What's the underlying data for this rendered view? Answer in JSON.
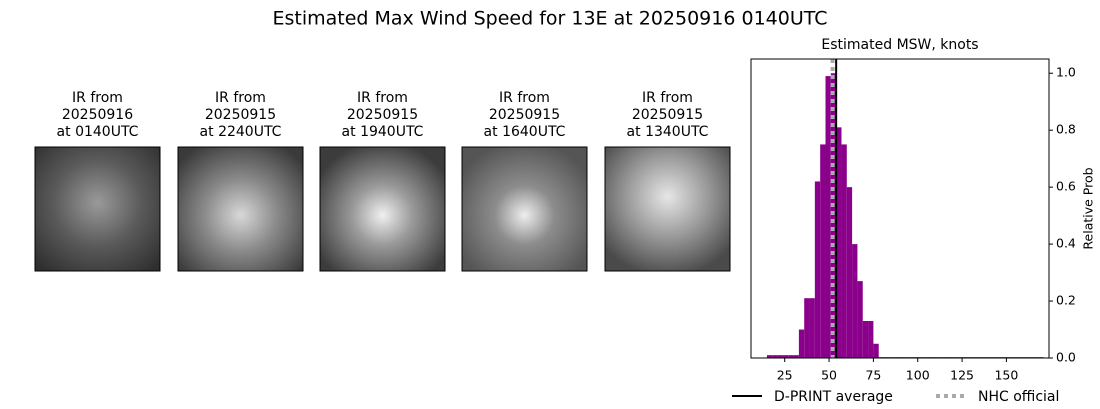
{
  "title": "Estimated Max Wind Speed for 13E at 20250916 0140UTC",
  "panels": [
    {
      "lines": [
        "IR from",
        "20250916",
        "at 0140UTC"
      ]
    },
    {
      "lines": [
        "IR from",
        "20250915",
        "at 2240UTC"
      ]
    },
    {
      "lines": [
        "IR from",
        "20250915",
        "at 1940UTC"
      ]
    },
    {
      "lines": [
        "IR from",
        "20250915",
        "at 1640UTC"
      ]
    },
    {
      "lines": [
        "IR from",
        "20250915",
        "at 1340UTC"
      ]
    }
  ],
  "chart_data": {
    "type": "histogram",
    "title": "Estimated MSW, knots",
    "ylabel": "Relative Prob",
    "color": "#8b008b",
    "bins": [
      15,
      18,
      21,
      24,
      27,
      30,
      33,
      36,
      39,
      42,
      45,
      48,
      51,
      54,
      57,
      60,
      63,
      66,
      69,
      72,
      75,
      78,
      81,
      84,
      87,
      90,
      93,
      96,
      99,
      102,
      105,
      108,
      111,
      114,
      117,
      120,
      123,
      126,
      129,
      132,
      135,
      138,
      141,
      144,
      147,
      150,
      153,
      156,
      159,
      162,
      165,
      168,
      171
    ],
    "counts": [
      0.01,
      0.01,
      0.01,
      0.01,
      0.01,
      0.01,
      0.1,
      0.21,
      0.21,
      0.62,
      0.75,
      0.99,
      1.0,
      0.81,
      0.75,
      0.6,
      0.4,
      0.27,
      0.13,
      0.13,
      0.05,
      0.003,
      0.003,
      0.003,
      0.003,
      0.003,
      0.003,
      0.003,
      0.003,
      0.003,
      0.003,
      0.003,
      0.003,
      0.003,
      0.003,
      0.003,
      0.003,
      0.003,
      0.003,
      0.003,
      0.003,
      0.003,
      0.003,
      0.003,
      0.003,
      0.003,
      0.003,
      0.003,
      0.003,
      0.003,
      0.003,
      0.003
    ],
    "xlim": [
      6,
      174
    ],
    "ylim": [
      0,
      1.05
    ],
    "xticks": [
      25,
      50,
      75,
      100,
      125,
      150
    ],
    "yticks": [
      {
        "value": 0,
        "label": "0.0"
      },
      0.2,
      0.4,
      0.6,
      0.8,
      {
        "value": 1,
        "label": "1.0"
      }
    ],
    "lines": [
      {
        "name": "D-PRINT average",
        "x": 54,
        "color": "#000000",
        "style": "solid"
      },
      {
        "name": "NHC official",
        "x": 52,
        "color": "#aaaaaa",
        "style": "dotted"
      }
    ]
  }
}
